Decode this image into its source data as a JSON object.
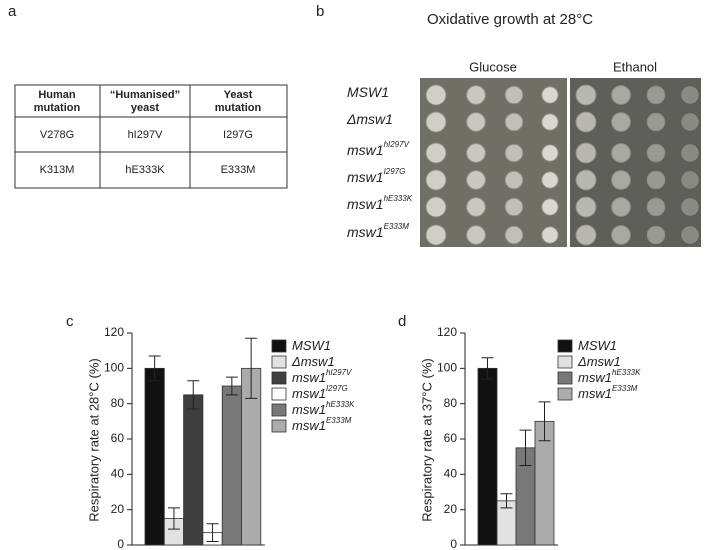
{
  "panel_labels": [
    "a",
    "b",
    "c",
    "d"
  ],
  "table": {
    "header": [
      "Human mutation",
      "“Humanised” yeast",
      "Yeast mutation"
    ],
    "rows": [
      [
        "V278G",
        "hI297V",
        "I297G"
      ],
      [
        "K313M",
        "hE333K",
        "E333M"
      ]
    ]
  },
  "growth": {
    "title": "Oxidative growth at 28°C",
    "columns": [
      "Glucose",
      "Ethanol"
    ],
    "strains": [
      [
        "MSW1",
        ""
      ],
      [
        "Δmsw1",
        ""
      ],
      [
        "msw1",
        "hI297V"
      ],
      [
        "msw1",
        "I297G"
      ],
      [
        "msw1",
        "hE333K"
      ],
      [
        "msw1",
        "E333M"
      ]
    ]
  },
  "chart_data": [
    {
      "type": "bar",
      "ylabel": "Respiratory rate at 28°C  (%)",
      "ylim": [
        0,
        120
      ],
      "yticks": [
        0,
        20,
        40,
        60,
        80,
        100,
        120
      ],
      "series": [
        {
          "name": [
            "MSW1",
            ""
          ],
          "color": "#111111",
          "values": [
            100
          ],
          "errors": [
            7
          ]
        },
        {
          "name": [
            "Δmsw1",
            ""
          ],
          "color": "#e2e2e2",
          "values": [
            15
          ],
          "errors": [
            6
          ]
        },
        {
          "name": [
            "msw1",
            "hI297V"
          ],
          "color": "#3f3f3f",
          "values": [
            85
          ],
          "errors": [
            8
          ]
        },
        {
          "name": [
            "msw1",
            "I297G"
          ],
          "color": "#ffffff",
          "values": [
            7
          ],
          "errors": [
            5
          ]
        },
        {
          "name": [
            "msw1",
            "hE333K"
          ],
          "color": "#787878",
          "values": [
            90
          ],
          "errors": [
            5
          ]
        },
        {
          "name": [
            "msw1",
            "E333M"
          ],
          "color": "#ababab",
          "values": [
            100
          ],
          "errors": [
            17
          ]
        }
      ]
    },
    {
      "type": "bar",
      "ylabel": "Respiratory rate at 37°C  (%)",
      "ylim": [
        0,
        120
      ],
      "yticks": [
        0,
        20,
        40,
        60,
        80,
        100,
        120
      ],
      "series": [
        {
          "name": [
            "MSW1",
            ""
          ],
          "color": "#111111",
          "values": [
            100
          ],
          "errors": [
            6
          ]
        },
        {
          "name": [
            "Δmsw1",
            ""
          ],
          "color": "#e2e2e2",
          "values": [
            25
          ],
          "errors": [
            4
          ]
        },
        {
          "name": [
            "msw1",
            "hE333K"
          ],
          "color": "#787878",
          "values": [
            55
          ],
          "errors": [
            10
          ]
        },
        {
          "name": [
            "msw1",
            "E333M"
          ],
          "color": "#ababab",
          "values": [
            70
          ],
          "errors": [
            11
          ]
        }
      ]
    }
  ]
}
